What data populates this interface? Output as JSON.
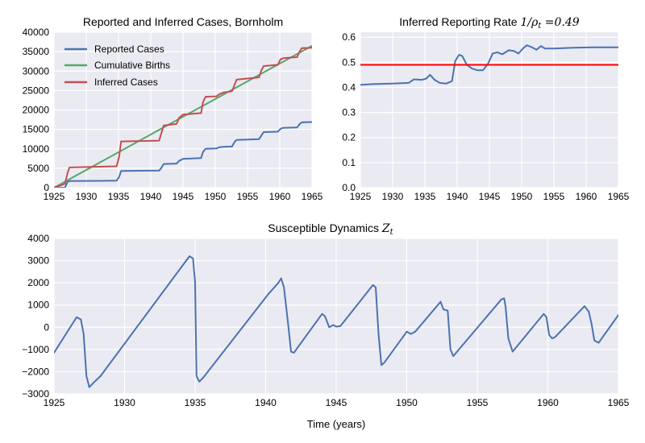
{
  "colors": {
    "reported": "#4c72b0",
    "births": "#55a868",
    "inferred": "#c44e52",
    "red_line": "#ff0000",
    "background": "#eaeaf2"
  },
  "chart_data": [
    {
      "type": "line",
      "title": "Reported and Inferred Cases, Bornholm",
      "xlim": [
        1925,
        1965
      ],
      "ylim": [
        0,
        40000
      ],
      "xticks": [
        "1925",
        "1930",
        "1935",
        "1940",
        "1945",
        "1950",
        "1955",
        "1960",
        "1965"
      ],
      "yticks": [
        "0",
        "5000",
        "10000",
        "15000",
        "20000",
        "25000",
        "30000",
        "35000",
        "40000"
      ],
      "legend_position": "top-left",
      "grid": true,
      "series": [
        {
          "name": "Reported Cases",
          "color": "#4c72b0",
          "x": [
            1925,
            1926.7,
            1927.1,
            1927.4,
            1934.7,
            1935.1,
            1935.4,
            1941.3,
            1941.6,
            1942.0,
            1944.0,
            1944.4,
            1945.0,
            1947.8,
            1948.1,
            1948.5,
            1950.2,
            1950.6,
            1951.3,
            1952.6,
            1953.0,
            1953.3,
            1956.8,
            1957.1,
            1957.5,
            1959.7,
            1960.1,
            1960.5,
            1962.7,
            1963.0,
            1963.4,
            1965
          ],
          "values": [
            0,
            0,
            1500,
            1700,
            1800,
            2800,
            4300,
            4400,
            5000,
            6100,
            6200,
            6900,
            7400,
            7600,
            9200,
            10000,
            10100,
            10400,
            10500,
            10600,
            11800,
            12300,
            12500,
            13300,
            14300,
            14400,
            15100,
            15400,
            15500,
            16200,
            16800,
            16900
          ]
        },
        {
          "name": "Cumulative Births",
          "color": "#55a868",
          "x": [
            1925,
            1965
          ],
          "values": [
            0,
            36500
          ]
        },
        {
          "name": "Inferred Cases",
          "color": "#c44e52",
          "x": [
            1925,
            1926.7,
            1927.1,
            1927.4,
            1934.7,
            1935.1,
            1935.4,
            1941.3,
            1941.6,
            1942.0,
            1944.0,
            1944.4,
            1945.0,
            1947.8,
            1948.1,
            1948.5,
            1950.2,
            1950.6,
            1951.3,
            1952.6,
            1953.0,
            1953.3,
            1956.8,
            1957.1,
            1957.5,
            1959.7,
            1960.1,
            1960.5,
            1962.7,
            1963.0,
            1963.4,
            1965
          ],
          "values": [
            0,
            1000,
            3800,
            5200,
            5500,
            8000,
            11900,
            12100,
            13800,
            16000,
            16400,
            18000,
            18800,
            19200,
            22000,
            23400,
            23500,
            24000,
            24500,
            24800,
            26500,
            27800,
            28400,
            30000,
            31300,
            31600,
            33000,
            33300,
            33600,
            34800,
            35900,
            36000
          ]
        }
      ]
    },
    {
      "type": "line",
      "title_prefix": "Inferred Reporting Rate ",
      "title_math": "1/ρ",
      "title_sub": "t",
      "title_suffix": " =0.49",
      "xlim": [
        1925,
        1965
      ],
      "ylim": [
        0.0,
        0.62
      ],
      "xticks": [
        "1925",
        "1930",
        "1935",
        "1940",
        "1945",
        "1950",
        "1955",
        "1960",
        "1965"
      ],
      "yticks": [
        "0.0",
        "0.1",
        "0.2",
        "0.3",
        "0.4",
        "0.5",
        "0.6"
      ],
      "grid": true,
      "series": [
        {
          "color": "#4c72b0",
          "x": [
            1925,
            1927,
            1930,
            1932.5,
            1933.3,
            1934.5,
            1935.2,
            1935.8,
            1936.5,
            1937.3,
            1938.3,
            1939.2,
            1939.7,
            1940.3,
            1940.8,
            1941.5,
            1942.3,
            1943.2,
            1944.0,
            1944.8,
            1945.5,
            1946.2,
            1947.0,
            1948.0,
            1948.8,
            1949.5,
            1950.2,
            1950.8,
            1951.6,
            1952.3,
            1953.0,
            1953.6,
            1955,
            1958,
            1961,
            1965
          ],
          "values": [
            0.41,
            0.413,
            0.415,
            0.418,
            0.432,
            0.43,
            0.435,
            0.45,
            0.43,
            0.418,
            0.415,
            0.425,
            0.505,
            0.53,
            0.525,
            0.49,
            0.475,
            0.468,
            0.468,
            0.495,
            0.535,
            0.54,
            0.532,
            0.548,
            0.545,
            0.535,
            0.555,
            0.568,
            0.56,
            0.55,
            0.565,
            0.555,
            0.555,
            0.558,
            0.56,
            0.56
          ]
        },
        {
          "color": "#ff0000",
          "x": [
            1925,
            1965
          ],
          "values": [
            0.49,
            0.49
          ]
        }
      ]
    },
    {
      "type": "line",
      "title_prefix": "Susceptible Dynamics ",
      "title_math": "Z",
      "title_sub": "t",
      "xlabel": "Time (years)",
      "xlim": [
        1925,
        1965
      ],
      "ylim": [
        -3000,
        4000
      ],
      "xticks": [
        "1925",
        "1930",
        "1935",
        "1940",
        "1945",
        "1950",
        "1955",
        "1960",
        "1965"
      ],
      "yticks": [
        "−3000",
        "−2000",
        "−1000",
        "0",
        "1000",
        "2000",
        "3000",
        "4000"
      ],
      "grid": true,
      "series": [
        {
          "color": "#4c72b0",
          "x": [
            1925,
            1926.6,
            1926.9,
            1927.1,
            1927.3,
            1927.5,
            1927.8,
            1928.3,
            1934.6,
            1934.85,
            1935.0,
            1935.1,
            1935.3,
            1935.6,
            1940.2,
            1940.9,
            1941.1,
            1941.3,
            1941.6,
            1941.8,
            1942.0,
            1944.0,
            1944.2,
            1944.5,
            1944.8,
            1945.0,
            1945.3,
            1947.6,
            1947.8,
            1948.0,
            1948.2,
            1948.4,
            1950.0,
            1950.3,
            1950.6,
            1952.4,
            1952.6,
            1952.9,
            1953.1,
            1953.3,
            1956.7,
            1956.9,
            1957.0,
            1957.2,
            1957.5,
            1959.7,
            1959.9,
            1960.1,
            1960.3,
            1960.5,
            1962.6,
            1962.9,
            1963.1,
            1963.3,
            1963.6,
            1965
          ],
          "values": [
            -1150,
            450,
            350,
            -300,
            -2200,
            -2700,
            -2500,
            -2200,
            3200,
            3100,
            2000,
            -2200,
            -2450,
            -2250,
            1500,
            2000,
            2200,
            1800,
            100,
            -1100,
            -1150,
            600,
            500,
            0,
            100,
            30,
            50,
            1900,
            1800,
            -300,
            -1700,
            -1600,
            -200,
            -300,
            -200,
            1150,
            800,
            750,
            -1000,
            -1300,
            1250,
            1300,
            950,
            -500,
            -1100,
            600,
            450,
            -350,
            -500,
            -450,
            950,
            700,
            150,
            -600,
            -700,
            550
          ]
        }
      ]
    }
  ]
}
